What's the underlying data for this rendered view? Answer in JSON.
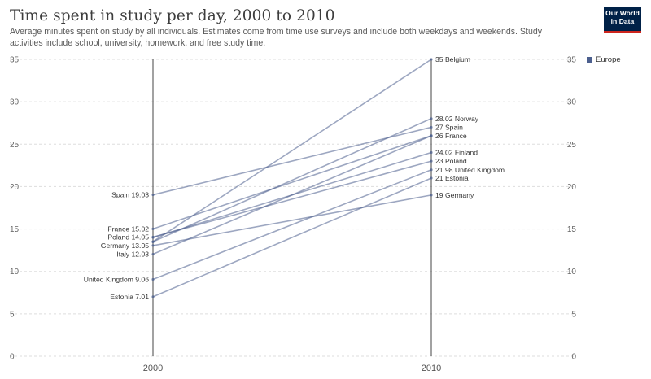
{
  "header": {
    "title": "Time spent in study per day, 2000 to 2010",
    "subtitle": "Average minutes spent on study by all individuals. Estimates come from time use surveys and include both weekdays and weekends. Study activities include school, university, homework, and free study time.",
    "logo_line1": "Our World",
    "logo_line2": "in Data"
  },
  "legend": {
    "label": "Europe",
    "color": "#4c5f8e"
  },
  "chart_data": {
    "type": "slope",
    "x": [
      "2000",
      "2010"
    ],
    "ylim": [
      0,
      35
    ],
    "yticks": [
      "0",
      "5",
      "10",
      "15",
      "20",
      "25",
      "30",
      "35"
    ],
    "line_color": "#4c5f8e",
    "series": [
      {
        "name": "Belgium",
        "start": 13.5,
        "end": 35,
        "start_label": "",
        "end_label": "35 Belgium"
      },
      {
        "name": "Norway",
        "start": 13.5,
        "end": 28.02,
        "start_label": "",
        "end_label": "28.02 Norway"
      },
      {
        "name": "Spain",
        "start": 19.03,
        "end": 27,
        "start_label": "Spain 19.03",
        "end_label": "27 Spain"
      },
      {
        "name": "France",
        "start": 15.02,
        "end": 26,
        "start_label": "France 15.02",
        "end_label": "26 France"
      },
      {
        "name": "Finland",
        "start": 14,
        "end": 24.02,
        "start_label": "",
        "end_label": "24.02 Finland"
      },
      {
        "name": "Poland",
        "start": 14.05,
        "end": 23,
        "start_label": "Poland 14.05",
        "end_label": "23 Poland"
      },
      {
        "name": "United Kingdom",
        "start": 9.06,
        "end": 21.98,
        "start_label": "United Kingdom 9.06",
        "end_label": "21.98 United Kingdom"
      },
      {
        "name": "Estonia",
        "start": 7.01,
        "end": 21,
        "start_label": "Estonia 7.01",
        "end_label": "21 Estonia"
      },
      {
        "name": "Germany",
        "start": 13.05,
        "end": 19,
        "start_label": "Germany 13.05",
        "end_label": "19 Germany"
      },
      {
        "name": "Italy",
        "start": 12.03,
        "end": 26,
        "start_label": "Italy 12.03",
        "end_label": ""
      }
    ]
  }
}
